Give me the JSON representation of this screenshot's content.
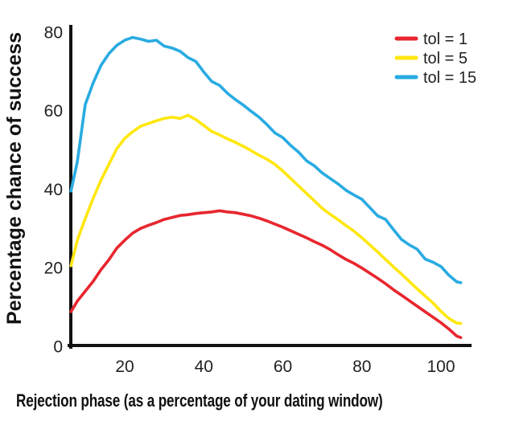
{
  "chart_data": {
    "type": "line",
    "title": "",
    "xlabel": "Rejection phase (as a percentage of your dating window)",
    "ylabel": "Percentage chance of success",
    "xlim": [
      6,
      107
    ],
    "ylim": [
      0,
      81.5
    ],
    "x_ticks": [
      20,
      40,
      60,
      80,
      100
    ],
    "y_ticks": [
      0,
      20,
      40,
      60,
      80
    ],
    "grid": false,
    "legend_position": "top-right",
    "axis_color": "#111111",
    "text_color": "#1c1c1c",
    "background_color": "#ffffff",
    "x": [
      6.4,
      8,
      10,
      12,
      14,
      16,
      18,
      20,
      22,
      24,
      26,
      28,
      30,
      32,
      34,
      36,
      38,
      40,
      42,
      44,
      46,
      48,
      50,
      52,
      54,
      56,
      58,
      60,
      62,
      64,
      66,
      68,
      70,
      72,
      74,
      76,
      78,
      80,
      82,
      84,
      86,
      88,
      90,
      92,
      94,
      96,
      98,
      100,
      102,
      104,
      105
    ],
    "series": [
      {
        "name": "tol = 1",
        "color": "#e8262e",
        "values": [
          8.8,
          11.5,
          14.0,
          16.5,
          19.5,
          22.0,
          25.0,
          27.0,
          28.8,
          30.0,
          30.8,
          31.5,
          32.3,
          32.8,
          33.3,
          33.5,
          33.8,
          34.0,
          34.2,
          34.5,
          34.2,
          34.0,
          33.6,
          33.2,
          32.6,
          31.9,
          31.1,
          30.3,
          29.4,
          28.5,
          27.6,
          26.6,
          25.7,
          24.6,
          23.3,
          22.1,
          21.1,
          19.9,
          18.6,
          17.3,
          15.9,
          14.4,
          13.0,
          11.6,
          10.2,
          8.8,
          7.4,
          6.0,
          4.4,
          2.6,
          2.2
        ]
      },
      {
        "name": "tol = 5",
        "color": "#ffe70e",
        "values": [
          20.5,
          27.0,
          32.5,
          37.6,
          42.3,
          46.3,
          50.3,
          52.9,
          54.6,
          56.0,
          56.7,
          57.4,
          58.0,
          58.3,
          58.0,
          58.8,
          57.7,
          56.2,
          54.7,
          53.8,
          52.8,
          51.9,
          50.9,
          49.8,
          48.6,
          47.6,
          46.3,
          44.6,
          42.7,
          40.8,
          38.9,
          37.0,
          35.1,
          33.6,
          32.2,
          30.7,
          29.3,
          27.6,
          25.8,
          24.0,
          22.1,
          20.2,
          18.4,
          16.5,
          14.6,
          12.8,
          11.0,
          8.9,
          7.1,
          5.9,
          5.8
        ]
      },
      {
        "name": "tol = 15",
        "color": "#29abe2",
        "values": [
          39.5,
          47.0,
          61.5,
          67.0,
          71.5,
          74.5,
          76.6,
          77.9,
          78.6,
          78.2,
          77.6,
          77.9,
          76.4,
          75.9,
          75.1,
          73.5,
          72.5,
          69.8,
          67.4,
          66.4,
          64.4,
          62.8,
          61.4,
          59.8,
          58.3,
          56.4,
          54.3,
          53.1,
          51.1,
          49.4,
          47.2,
          45.9,
          44.1,
          42.7,
          41.3,
          39.7,
          38.5,
          37.4,
          35.3,
          33.2,
          32.3,
          29.7,
          27.2,
          25.8,
          24.7,
          22.2,
          21.4,
          20.3,
          18.1,
          16.4,
          16.2
        ]
      }
    ],
    "legend_order": [
      "tol = 1",
      "tol = 5",
      "tol = 15"
    ]
  }
}
